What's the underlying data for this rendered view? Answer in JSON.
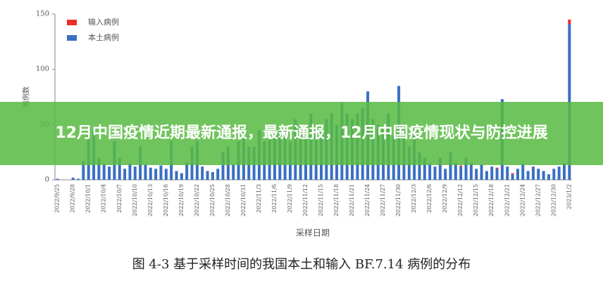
{
  "chart_data": {
    "type": "bar",
    "stacked": true,
    "ylabel": "病例数",
    "xlabel": "采样日期",
    "ylim": [
      0,
      150
    ],
    "yticks": [
      0,
      50,
      100,
      150
    ],
    "categories": [
      "2022/9/25",
      null,
      null,
      "2022/9/28",
      null,
      null,
      "2022/10/1",
      null,
      null,
      "2022/10/4",
      null,
      null,
      "2022/10/7",
      null,
      null,
      "2022/10/10",
      null,
      null,
      "2022/10/13",
      null,
      null,
      "2022/10/16",
      null,
      null,
      "2022/10/19",
      null,
      null,
      "2022/10/22",
      null,
      null,
      "2022/10/25",
      null,
      null,
      "2022/10/28",
      null,
      null,
      "2022/10/31",
      null,
      null,
      "2022/11/3",
      null,
      null,
      "2022/11/6",
      null,
      null,
      "2022/11/9",
      null,
      null,
      "2022/11/12",
      null,
      null,
      "2022/11/15",
      null,
      null,
      "2022/11/18",
      null,
      null,
      "2022/11/21",
      null,
      null,
      "2022/11/24",
      null,
      null,
      "2022/11/27",
      null,
      null,
      "2022/11/30",
      null,
      null,
      "2022/12/3",
      null,
      null,
      "2022/12/6",
      null,
      null,
      "2022/12/9",
      null,
      null,
      "2022/12/12",
      null,
      null,
      "2022/12/15",
      null,
      null,
      "2022/12/18",
      null,
      null,
      "2022/12/21",
      null,
      null,
      "2022/12/24",
      null,
      null,
      "2022/12/27",
      null,
      null,
      "2022/12/30",
      null,
      null,
      "2023/1/2"
    ],
    "series": [
      {
        "name": "本土病例",
        "color": "#3a6fc4",
        "values": [
          1,
          0,
          0,
          2,
          1,
          17,
          40,
          45,
          20,
          14,
          12,
          35,
          20,
          10,
          15,
          12,
          30,
          14,
          11,
          10,
          13,
          10,
          35,
          8,
          6,
          15,
          30,
          35,
          12,
          8,
          7,
          10,
          25,
          30,
          14,
          35,
          40,
          30,
          30,
          45,
          35,
          40,
          50,
          45,
          40,
          35,
          55,
          45,
          40,
          60,
          50,
          45,
          55,
          60,
          50,
          70,
          60,
          55,
          60,
          65,
          80,
          55,
          50,
          45,
          60,
          40,
          85,
          45,
          30,
          40,
          25,
          20,
          15,
          12,
          20,
          10,
          25,
          15,
          12,
          20,
          15,
          10,
          14,
          8,
          12,
          10,
          73,
          12,
          5,
          10,
          15,
          8,
          12,
          10,
          8,
          5,
          10,
          12,
          15,
          141
        ]
      },
      {
        "name": "输入病例",
        "color": "#e8312a",
        "values": [
          0,
          0,
          0,
          0,
          0,
          0,
          0,
          0,
          0,
          0,
          0,
          0,
          0,
          0,
          0,
          0,
          0,
          0,
          0,
          0,
          0,
          0,
          0,
          0,
          0,
          1,
          0,
          0,
          0,
          0,
          0,
          0,
          0,
          0,
          0,
          0,
          0,
          0,
          0,
          0,
          0,
          0,
          0,
          0,
          0,
          0,
          0,
          0,
          0,
          0,
          0,
          0,
          0,
          0,
          0,
          0,
          0,
          0,
          0,
          0,
          0,
          0,
          0,
          0,
          0,
          0,
          0,
          0,
          0,
          0,
          0,
          0,
          0,
          0,
          0,
          0,
          0,
          0,
          1,
          0,
          0,
          0,
          0,
          0,
          0,
          1,
          0,
          0,
          1,
          0,
          0,
          0,
          0,
          0,
          0,
          0,
          0,
          0,
          0,
          4
        ]
      }
    ]
  },
  "banner": "12月中国疫情近期最新通报，最新通报，12月中国疫情现状与防控进展",
  "caption": "图 4-3 基于采样时间的我国本土和输入 BF.7.14 病例的分布"
}
